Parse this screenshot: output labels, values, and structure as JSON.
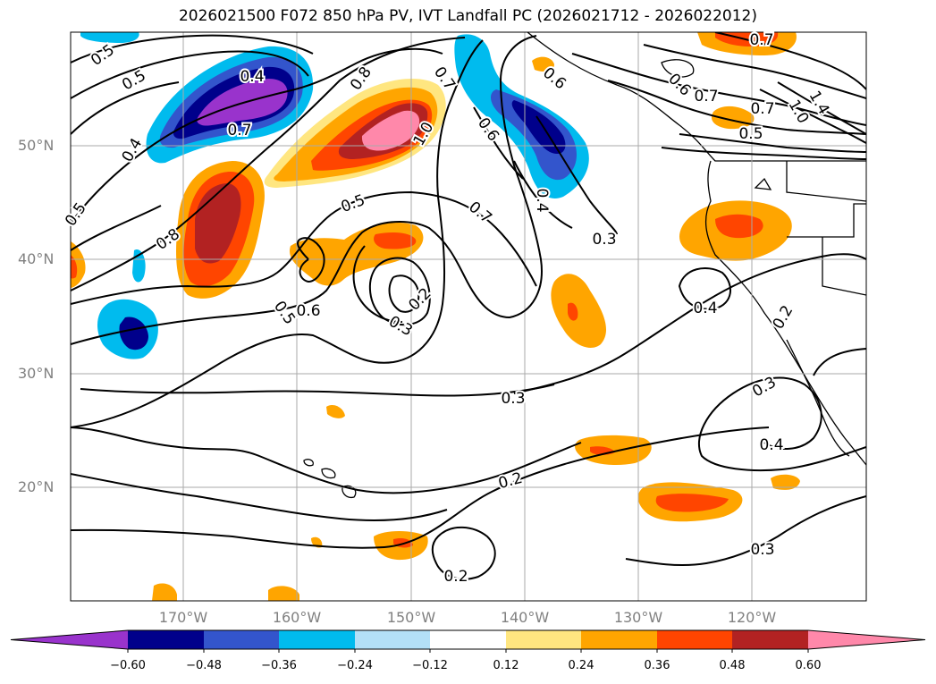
{
  "title": "2026021500 F072 850 hPa PV, IVT Landfall PC (2026021712 - 2026022012)",
  "lat_labels": [
    "50°N",
    "40°N",
    "30°N",
    "20°N"
  ],
  "lon_labels": [
    "170°W",
    "160°W",
    "150°W",
    "140°W",
    "130°W",
    "120°W"
  ],
  "colorbar": {
    "colors": [
      "#9933cc",
      "#00008b",
      "#3355cc",
      "#00bbee",
      "#b3e0f7",
      "#ffffff",
      "#ffe680",
      "#ffa500",
      "#ff4500",
      "#b22222",
      "#ff88aa"
    ],
    "ticks": [
      "−0.60",
      "−0.48",
      "−0.36",
      "−0.24",
      "−0.12",
      "0.12",
      "0.24",
      "0.36",
      "0.48",
      "0.60"
    ]
  },
  "contour_labels": [
    "0.5",
    "0.5",
    "0.4",
    "0.7",
    "0.4",
    "0.5",
    "0.8",
    "0.8",
    "0.7",
    "1.0",
    "0.5",
    "0.7",
    "0.6",
    "0.6",
    "0.4",
    "0.7",
    "0.3",
    "0.6",
    "0.7",
    "1.0",
    "1.4",
    "0.5",
    "0.7",
    "0.6",
    "0.5",
    "0.2",
    "0.3",
    "0.3",
    "0.4",
    "0.2",
    "0.3",
    "0.4",
    "0.2",
    "0.3",
    "0.2"
  ]
}
